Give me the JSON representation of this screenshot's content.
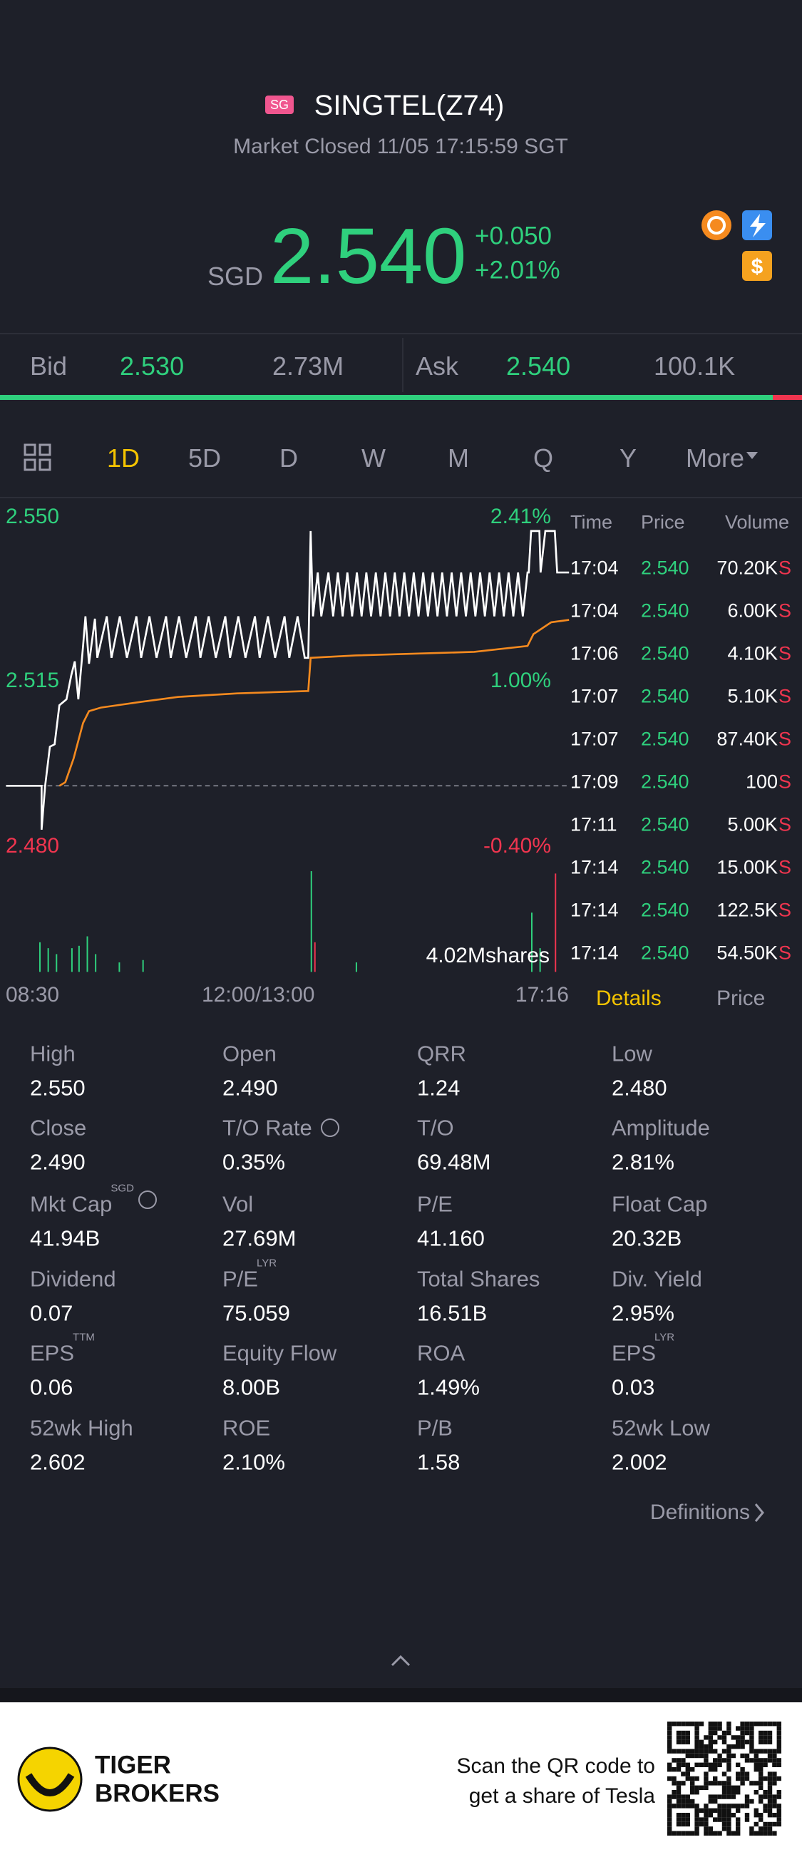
{
  "header": {
    "badge": "SG",
    "title": "SINGTEL(Z74)",
    "status": "Market Closed 11/05 17:15:59 SGT"
  },
  "quote": {
    "currency": "SGD",
    "price": "2.540",
    "change": "+0.050",
    "change_pct": "+2.01%"
  },
  "order_book": {
    "bid_label": "Bid",
    "bid_price": "2.530",
    "bid_size": "2.73M",
    "ask_label": "Ask",
    "ask_price": "2.540",
    "ask_size": "100.1K"
  },
  "tabs": [
    "1D",
    "5D",
    "D",
    "W",
    "M",
    "Q",
    "Y",
    "More"
  ],
  "chart_labels": {
    "high": "2.550",
    "high_pct": "2.41%",
    "mid": "2.515",
    "mid_pct": "1.00%",
    "low": "2.480",
    "low_pct": "-0.40%",
    "volume": "4.02Mshares",
    "time_start": "08:30",
    "time_mid": "12:00/13:00",
    "time_end": "17:16"
  },
  "ticks": {
    "headers": [
      "Time",
      "Price",
      "Volume"
    ],
    "rows": [
      [
        "17:04",
        "2.540",
        "70.20K",
        "S"
      ],
      [
        "17:04",
        "2.540",
        "6.00K",
        "S"
      ],
      [
        "17:06",
        "2.540",
        "4.10K",
        "S"
      ],
      [
        "17:07",
        "2.540",
        "5.10K",
        "S"
      ],
      [
        "17:07",
        "2.540",
        "87.40K",
        "S"
      ],
      [
        "17:09",
        "2.540",
        "100",
        "S"
      ],
      [
        "17:11",
        "2.540",
        "5.00K",
        "S"
      ],
      [
        "17:14",
        "2.540",
        "15.00K",
        "S"
      ],
      [
        "17:14",
        "2.540",
        "122.5K",
        "S"
      ],
      [
        "17:14",
        "2.540",
        "54.50K",
        "S"
      ]
    ]
  },
  "panel_tabs": [
    "Details",
    "Price"
  ],
  "stats": [
    [
      {
        "label": "High",
        "value": "2.550"
      },
      {
        "label": "Open",
        "value": "2.490"
      },
      {
        "label": "QRR",
        "value": "1.24"
      },
      {
        "label": "Low",
        "value": "2.480"
      }
    ],
    [
      {
        "label": "Close",
        "value": "2.490"
      },
      {
        "label": "T/O Rate",
        "value": "0.35%"
      },
      {
        "label": "T/O",
        "value": "69.48M"
      },
      {
        "label": "Amplitude",
        "value": "2.81%"
      }
    ],
    [
      {
        "label": "Mkt Cap",
        "sup": "SGD",
        "value": "41.94B"
      },
      {
        "label": "Vol",
        "value": "27.69M"
      },
      {
        "label": "P/E",
        "value": "41.160"
      },
      {
        "label": "Float Cap",
        "value": "20.32B"
      }
    ],
    [
      {
        "label": "Dividend",
        "value": "0.07"
      },
      {
        "label": "P/E",
        "sup": "LYR",
        "value": "75.059"
      },
      {
        "label": "Total Shares",
        "value": "16.51B"
      },
      {
        "label": "Div. Yield",
        "value": "2.95%"
      }
    ],
    [
      {
        "label": "EPS",
        "sup": "TTM",
        "value": "0.06"
      },
      {
        "label": "Equity Flow",
        "value": "8.00B"
      },
      {
        "label": "ROA",
        "value": "1.49%"
      },
      {
        "label": "EPS",
        "sup": "LYR",
        "value": "0.03"
      }
    ],
    [
      {
        "label": "52wk High",
        "value": "2.602"
      },
      {
        "label": "ROE",
        "value": "2.10%"
      },
      {
        "label": "P/B",
        "value": "1.58"
      },
      {
        "label": "52wk Low",
        "value": "2.002"
      }
    ]
  ],
  "definitions": "Definitions",
  "footer": {
    "brand": [
      "TIGER",
      "BROKERS"
    ],
    "promo": [
      "Scan the QR code to",
      "get a share of Tesla"
    ]
  }
}
